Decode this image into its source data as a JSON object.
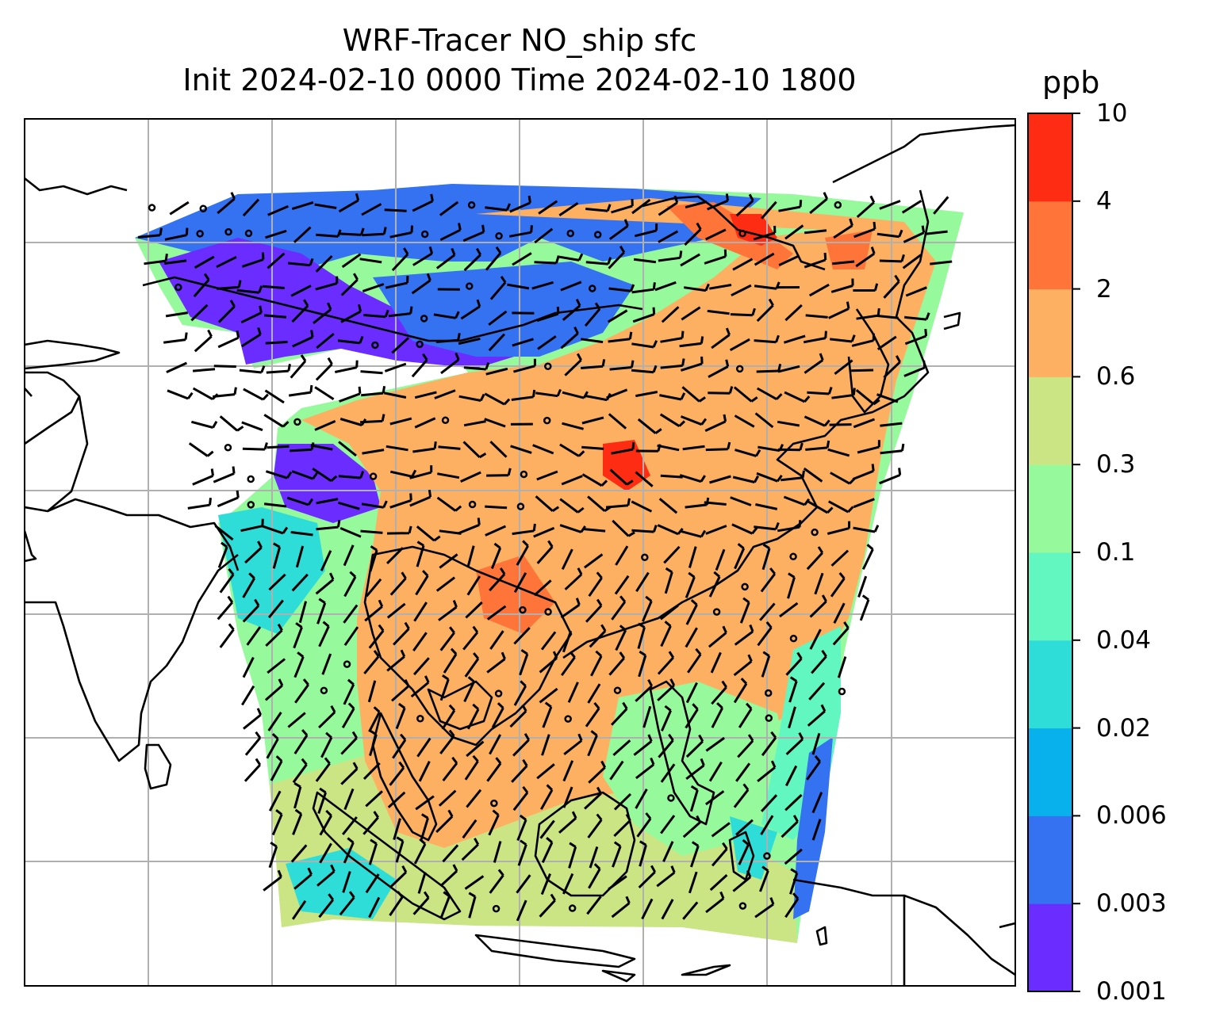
{
  "title": {
    "line1": "WRF-Tracer NO_ship sfc",
    "line2": "Init 2024-02-10 0000 Time 2024-02-10 1800"
  },
  "colorbar": {
    "units": "ppb",
    "levels": [
      {
        "label": "0.001",
        "color": "#6a2cff"
      },
      {
        "label": "0.003",
        "color": "#3472f2"
      },
      {
        "label": "0.006",
        "color": "#08b0ec"
      },
      {
        "label": "0.02",
        "color": "#2edcd8"
      },
      {
        "label": "0.04",
        "color": "#62f6c0"
      },
      {
        "label": "0.1",
        "color": "#96fa9c"
      },
      {
        "label": "0.3",
        "color": "#cce584"
      },
      {
        "label": "0.6",
        "color": "#fdb061"
      },
      {
        "label": "2",
        "color": "#ff7438"
      },
      {
        "label": "4",
        "color": "#ff2c14"
      },
      {
        "label": "10",
        "color": null
      }
    ]
  },
  "map": {
    "gridlines": true,
    "coastline_color": "#000000",
    "grid_color": "#b0b0b0",
    "wind_barbs": true
  }
}
